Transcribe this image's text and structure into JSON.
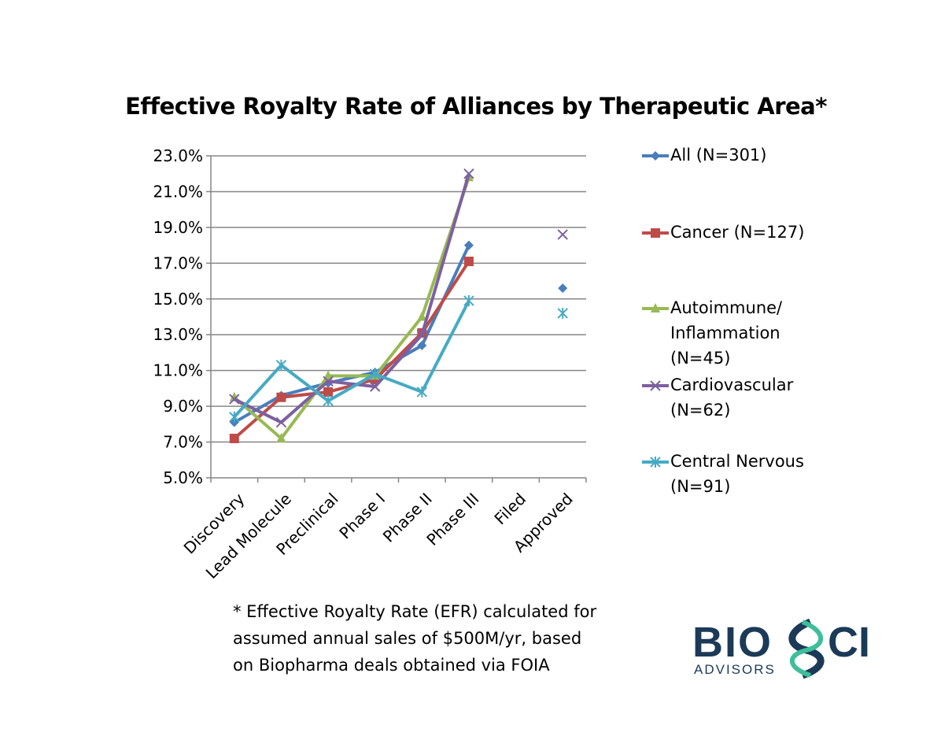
{
  "chart_data": {
    "type": "line",
    "title": "Effective Royalty Rate of Alliances by Therapeutic Area*",
    "categories": [
      "Discovery",
      "Lead Molecule",
      "Preclinical",
      "Phase I",
      "Phase II",
      "Phase III",
      "Filed",
      "Approved"
    ],
    "ylim": [
      5.0,
      23.0
    ],
    "yticks": [
      "5.0%",
      "7.0%",
      "9.0%",
      "11.0%",
      "13.0%",
      "15.0%",
      "17.0%",
      "19.0%",
      "21.0%",
      "23.0%"
    ],
    "ytick_values": [
      5,
      7,
      9,
      11,
      13,
      15,
      17,
      19,
      21,
      23
    ],
    "grid": true,
    "legend_position": "right",
    "series": [
      {
        "name": "All (N=301)",
        "legend_lines": [
          "All (N=301)"
        ],
        "color": "#4a7ebb",
        "marker": "diamond",
        "values": [
          8.1,
          9.6,
          10.3,
          10.9,
          12.4,
          18.0,
          null,
          15.6
        ]
      },
      {
        "name": "Cancer (N=127)",
        "legend_lines": [
          "Cancer (N=127)"
        ],
        "color": "#be4b48",
        "marker": "square",
        "values": [
          7.2,
          9.5,
          9.8,
          10.5,
          13.1,
          17.1,
          null,
          null
        ]
      },
      {
        "name": "Autoimmune/ Inflammation (N=45)",
        "legend_lines": [
          "Autoimmune/",
          "Inflammation",
          "(N=45)"
        ],
        "color": "#98b954",
        "marker": "triangle",
        "values": [
          9.5,
          7.2,
          10.7,
          10.7,
          14.0,
          21.8,
          null,
          null
        ]
      },
      {
        "name": "Cardiovascular (N=62)",
        "legend_lines": [
          "Cardiovascular",
          "(N=62)"
        ],
        "color": "#7d60a0",
        "marker": "x",
        "values": [
          9.4,
          8.1,
          10.4,
          10.1,
          13.0,
          22.0,
          null,
          18.6
        ]
      },
      {
        "name": "Central Nervous (N=91)",
        "legend_lines": [
          "Central Nervous",
          "(N=91)"
        ],
        "color": "#46aac5",
        "marker": "star",
        "values": [
          8.4,
          11.3,
          9.3,
          10.8,
          9.8,
          14.9,
          null,
          14.2
        ]
      }
    ]
  },
  "footnote": [
    "* Effective Royalty Rate (EFR) calculated for",
    "assumed annual sales of $500M/yr, based",
    "on Biopharma deals obtained via FOIA"
  ],
  "logo": {
    "text": "BIOSCI",
    "subtext": "ADVISORS",
    "colors": {
      "dark": "#1b3a57",
      "accent": "#3dbf9a"
    }
  }
}
